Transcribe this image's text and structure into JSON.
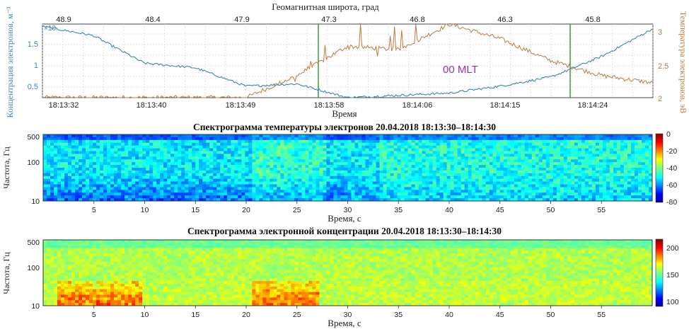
{
  "colors": {
    "concentration": "#3b86b8",
    "temperature": "#c07a3e",
    "mlt_label": "#9b2fb0",
    "vertical_marker": "#3a9a4a",
    "axis": "#444444"
  },
  "panel1": {
    "top_axis_title": "Геомагнитная широта, град",
    "top_ticks": [
      "48.9",
      "48.4",
      "47.9",
      "47.3",
      "46.8",
      "46.3",
      "45.8"
    ],
    "left_label": "Концентрация электронов, м⁻³",
    "left_exponent": "×10",
    "left_ticks": [
      "1.5",
      "1",
      "0.5"
    ],
    "right_label": "Температура электронов, эВ",
    "right_ticks": [
      "3",
      "2.5",
      "2"
    ],
    "bottom_ticks": [
      "18:13:32",
      "18:13:40",
      "18:13:49",
      "18:13:58",
      "18:14:06",
      "18:14:15",
      "18:14:24"
    ],
    "bottom_label": "Время",
    "annotation": "00 MLT"
  },
  "panel2": {
    "title": "Спектрограмма температуры электронов 20.04.2018  18:13:30–18:14:30",
    "ylabel": "Частота, Гц",
    "yticks": [
      "500",
      "100",
      "10"
    ],
    "xticks": [
      "5",
      "10",
      "15",
      "20",
      "25",
      "30",
      "35",
      "40",
      "45",
      "50",
      "55"
    ],
    "xlabel": "Время, с",
    "colorbar_ticks": [
      "0",
      "-20",
      "-40",
      "-60",
      "-80"
    ]
  },
  "panel3": {
    "title": "Спектрограмма электронной концентрации 20.04.2018  18:13:30–18:14:30",
    "ylabel": "Частота, Гц",
    "yticks": [
      "500",
      "100",
      "10"
    ],
    "xticks": [
      "5",
      "10",
      "15",
      "20",
      "25",
      "30",
      "35",
      "40",
      "45",
      "50",
      "55"
    ],
    "xlabel": "Время, с",
    "colorbar_ticks": [
      "200",
      "150",
      "100"
    ]
  },
  "chart_data": [
    {
      "type": "line",
      "x_time": [
        "18:13:30",
        "18:13:35",
        "18:13:40",
        "18:13:45",
        "18:13:50",
        "18:13:55",
        "18:14:00",
        "18:14:05",
        "18:14:10",
        "18:14:15",
        "18:14:20",
        "18:14:25",
        "18:14:30"
      ],
      "series": [
        {
          "axis": "left",
          "values": [
            1.75,
            1.55,
            0.95,
            0.85,
            0.45,
            0.5,
            0.2,
            0.25,
            0.3,
            0.45,
            0.65,
            1.1,
            1.7
          ]
        },
        {
          "axis": "right",
          "values": [
            2.0,
            2.0,
            2.0,
            2.0,
            2.0,
            2.3,
            2.7,
            2.65,
            3.0,
            2.8,
            2.5,
            2.3,
            2.2
          ]
        }
      ],
      "ylim_left": [
        0.2,
        1.8
      ],
      "ylim_right": [
        2,
        3
      ]
    },
    {
      "type": "heatmap",
      "xlim": [
        0,
        60
      ],
      "ylim": [
        10,
        500
      ],
      "yscale": "log",
      "clim": [
        -80,
        0
      ]
    },
    {
      "type": "heatmap",
      "xlim": [
        0,
        60
      ],
      "ylim": [
        10,
        500
      ],
      "yscale": "log",
      "clim": [
        80,
        215
      ]
    }
  ]
}
